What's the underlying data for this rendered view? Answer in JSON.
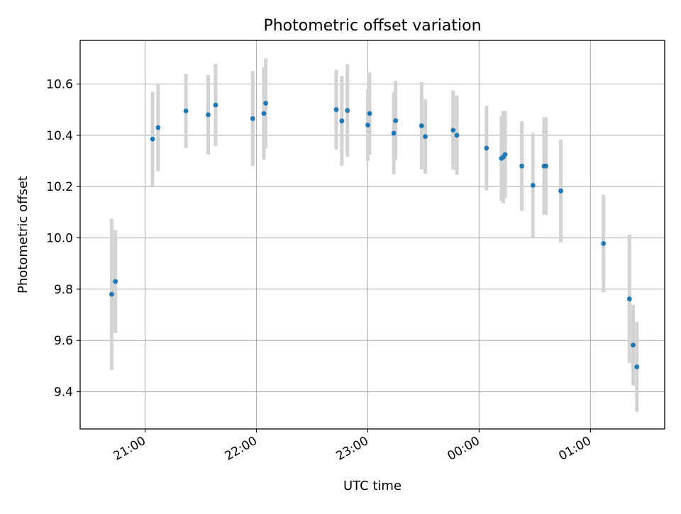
{
  "chart_data": {
    "type": "scatter",
    "title": "Photometric offset variation",
    "xlabel": "UTC time",
    "ylabel": "Photometric offset",
    "xlim": [
      "20:25",
      "01:40"
    ],
    "ylim": [
      9.255,
      10.77
    ],
    "x_ticks": [
      "21:00",
      "22:00",
      "23:00",
      "00:00",
      "01:00"
    ],
    "y_ticks": [
      "9.4",
      "9.6",
      "9.8",
      "10.0",
      "10.2",
      "10.4",
      "10.6"
    ],
    "grid": true,
    "errorbar_color": "#d3d3d3",
    "marker_color": "#1f77b4",
    "points": [
      {
        "x": "20:42",
        "y": 9.78,
        "yerr": 0.295
      },
      {
        "x": "20:44",
        "y": 9.83,
        "yerr": 0.2
      },
      {
        "x": "21:04",
        "y": 10.385,
        "yerr": 0.185
      },
      {
        "x": "21:07",
        "y": 10.43,
        "yerr": 0.17
      },
      {
        "x": "21:22",
        "y": 10.495,
        "yerr": 0.145
      },
      {
        "x": "21:34",
        "y": 10.48,
        "yerr": 0.155
      },
      {
        "x": "21:38",
        "y": 10.518,
        "yerr": 0.16
      },
      {
        "x": "21:58",
        "y": 10.465,
        "yerr": 0.185
      },
      {
        "x": "22:04",
        "y": 10.485,
        "yerr": 0.18
      },
      {
        "x": "22:05",
        "y": 10.525,
        "yerr": 0.175
      },
      {
        "x": "22:43",
        "y": 10.5,
        "yerr": 0.155
      },
      {
        "x": "22:46",
        "y": 10.456,
        "yerr": 0.175
      },
      {
        "x": "22:49",
        "y": 10.497,
        "yerr": 0.18
      },
      {
        "x": "23:00",
        "y": 10.44,
        "yerr": 0.14
      },
      {
        "x": "23:01",
        "y": 10.485,
        "yerr": 0.16
      },
      {
        "x": "23:14",
        "y": 10.408,
        "yerr": 0.16
      },
      {
        "x": "23:15",
        "y": 10.457,
        "yerr": 0.155
      },
      {
        "x": "23:29",
        "y": 10.437,
        "yerr": 0.17
      },
      {
        "x": "23:31",
        "y": 10.395,
        "yerr": 0.145
      },
      {
        "x": "23:46",
        "y": 10.42,
        "yerr": 0.155
      },
      {
        "x": "23:48",
        "y": 10.4,
        "yerr": 0.155
      },
      {
        "x": "00:04",
        "y": 10.35,
        "yerr": 0.165
      },
      {
        "x": "00:12",
        "y": 10.31,
        "yerr": 0.165
      },
      {
        "x": "00:13",
        "y": 10.315,
        "yerr": 0.18
      },
      {
        "x": "00:14",
        "y": 10.325,
        "yerr": 0.17
      },
      {
        "x": "00:23",
        "y": 10.28,
        "yerr": 0.175
      },
      {
        "x": "00:29",
        "y": 10.205,
        "yerr": 0.205
      },
      {
        "x": "00:35",
        "y": 10.28,
        "yerr": 0.19
      },
      {
        "x": "00:36",
        "y": 10.28,
        "yerr": 0.19
      },
      {
        "x": "00:44",
        "y": 10.183,
        "yerr": 0.2
      },
      {
        "x": "01:07",
        "y": 9.978,
        "yerr": 0.19
      },
      {
        "x": "01:21",
        "y": 9.762,
        "yerr": 0.25
      },
      {
        "x": "01:23",
        "y": 9.582,
        "yerr": 0.157
      },
      {
        "x": "01:25",
        "y": 9.497,
        "yerr": 0.175
      }
    ]
  }
}
